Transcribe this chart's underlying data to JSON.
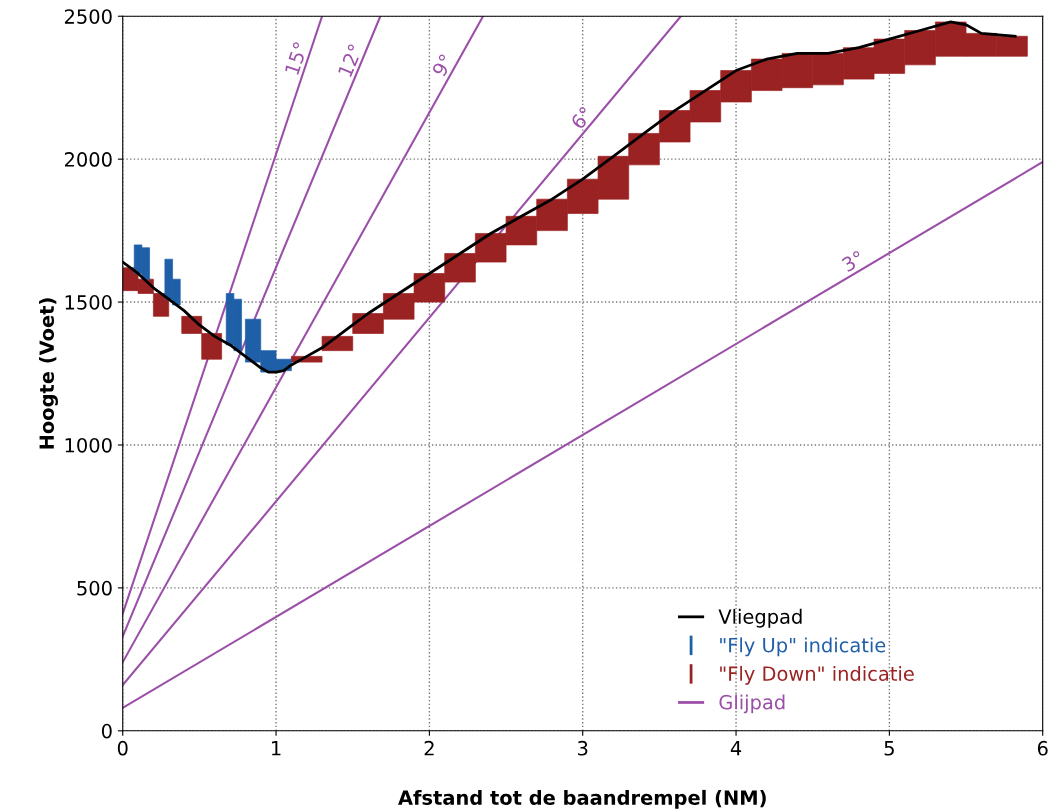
{
  "chart_data": {
    "type": "line",
    "xlabel": "Afstand tot de baandrempel (NM)",
    "ylabel": "Hoogte (Voet)",
    "xlim": [
      0,
      6
    ],
    "ylim": [
      0,
      2500
    ],
    "xticks": [
      0,
      1,
      2,
      3,
      4,
      5,
      6
    ],
    "yticks": [
      0,
      500,
      1000,
      1500,
      2000,
      2500
    ],
    "grid": true,
    "legend": "bottom right",
    "series": [
      {
        "name": "Glijpad",
        "type": "line",
        "color": "#9b4fa8",
        "x": [
          0,
          6,
          null,
          0,
          3.64,
          null,
          0,
          2.35,
          null,
          0,
          1.68,
          null,
          0,
          1.3
        ],
        "values": [
          80,
          1990,
          null,
          160,
          2500,
          null,
          240,
          2500,
          null,
          330,
          2500,
          null,
          410,
          2500
        ]
      },
      {
        "name": "\"Fly Down\" indicatie",
        "type": "bar",
        "color": "#9b2222",
        "x": [
          0.05,
          0.15,
          0.25,
          0.45,
          0.58,
          1.2,
          1.4,
          1.6,
          1.8,
          2.0,
          2.2,
          2.4,
          2.6,
          2.8,
          3.0,
          3.2,
          3.4,
          3.6,
          3.8,
          4.0,
          4.2,
          4.4,
          4.6,
          4.8,
          5.0,
          5.2,
          5.4,
          5.6,
          5.8
        ],
        "base": [
          1540,
          1530,
          1450,
          1390,
          1300,
          1290,
          1330,
          1390,
          1440,
          1500,
          1570,
          1640,
          1700,
          1750,
          1810,
          1860,
          1980,
          2060,
          2130,
          2200,
          2240,
          2250,
          2260,
          2280,
          2300,
          2330,
          2360,
          2360,
          2360
        ],
        "values": [
          80,
          50,
          80,
          60,
          90,
          20,
          50,
          70,
          90,
          100,
          100,
          100,
          100,
          110,
          120,
          150,
          110,
          110,
          110,
          110,
          110,
          120,
          110,
          110,
          120,
          120,
          120,
          80,
          70
        ]
      },
      {
        "name": "\"Fly Up\" indicatie",
        "type": "bar",
        "color": "#1f5fa8",
        "x": [
          0.1,
          0.15,
          0.3,
          0.35,
          0.7,
          0.75,
          0.85,
          0.95,
          1.05
        ],
        "base": [
          1600,
          1580,
          1510,
          1490,
          1350,
          1330,
          1290,
          1255,
          1260
        ],
        "values": [
          100,
          110,
          140,
          90,
          180,
          180,
          150,
          75,
          40
        ]
      },
      {
        "name": "Vliegpad",
        "color": "#000000",
        "x": [
          0,
          0.1,
          0.2,
          0.3,
          0.4,
          0.5,
          0.6,
          0.7,
          0.8,
          0.9,
          0.95,
          1.0,
          1.05,
          1.1,
          1.2,
          1.3,
          1.4,
          1.5,
          1.6,
          1.8,
          2.0,
          2.2,
          2.4,
          2.6,
          2.8,
          3.0,
          3.2,
          3.4,
          3.6,
          3.8,
          4.0,
          4.2,
          4.4,
          4.6,
          4.8,
          5.0,
          5.2,
          5.4,
          5.5,
          5.6,
          5.82
        ],
        "values": [
          1640,
          1600,
          1550,
          1510,
          1470,
          1420,
          1380,
          1350,
          1310,
          1270,
          1255,
          1255,
          1260,
          1280,
          1310,
          1340,
          1380,
          1420,
          1460,
          1530,
          1600,
          1670,
          1740,
          1800,
          1860,
          1930,
          2010,
          2090,
          2170,
          2240,
          2310,
          2350,
          2370,
          2370,
          2390,
          2420,
          2450,
          2480,
          2470,
          2440,
          2430
        ]
      }
    ],
    "annotations": [
      {
        "text": "3°",
        "x": 4.8,
        "y": 1610
      },
      {
        "text": "6°",
        "x": 3.05,
        "y": 2120
      },
      {
        "text": "9°",
        "x": 2.15,
        "y": 2310
      },
      {
        "text": "12°",
        "x": 1.55,
        "y": 2330
      },
      {
        "text": "15°",
        "x": 1.2,
        "y": 2340
      }
    ]
  }
}
